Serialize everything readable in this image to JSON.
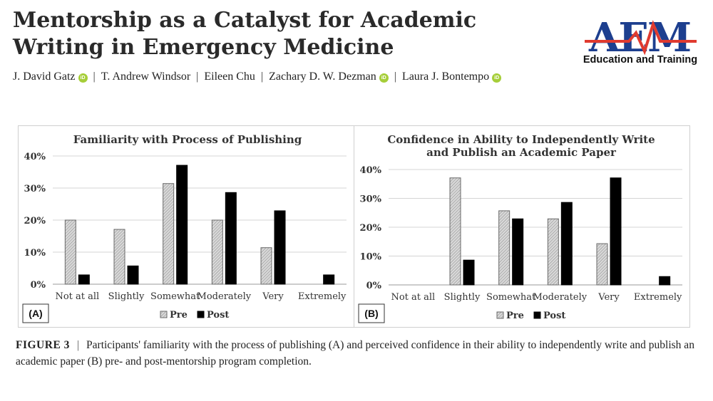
{
  "header": {
    "title": "Mentorship as a Catalyst for Academic Writing in Emergency Medicine",
    "authors": [
      "J. David Gatz",
      "T. Andrew Windsor",
      "Eileen Chu",
      "Zachary D. W. Dezman",
      "Laura J. Bontempo"
    ],
    "orcid_flags": [
      true,
      false,
      false,
      true,
      true
    ],
    "separator": "|",
    "orcid_label": "iD"
  },
  "journal": {
    "logo_text": "AEM",
    "subtitle": "Education and Training",
    "colors": {
      "blue": "#1d3f8f",
      "red": "#e03a2f"
    }
  },
  "chart_data": [
    {
      "type": "bar",
      "panel_label": "(A)",
      "title": "Familiarity with Process of Publishing",
      "categories": [
        "Not at all",
        "Slightly",
        "Somewhat",
        "Moderately",
        "Very",
        "Extremely"
      ],
      "series": [
        {
          "name": "Pre",
          "values": [
            20,
            17.1,
            31.4,
            20,
            11.4,
            0
          ]
        },
        {
          "name": "Post",
          "values": [
            2.9,
            5.7,
            37.1,
            28.6,
            22.9,
            2.9
          ]
        }
      ],
      "y_ticks": [
        "0%",
        "10%",
        "20%",
        "30%",
        "40%"
      ],
      "ylim": [
        0,
        40
      ],
      "xlabel": "",
      "ylabel": "",
      "grid": true,
      "legend": "bottom"
    },
    {
      "type": "bar",
      "panel_label": "(B)",
      "title": "Confidence in Ability to Independently Write and Publish an Academic Paper",
      "categories": [
        "Not at all",
        "Slightly",
        "Somewhat",
        "Moderately",
        "Very",
        "Extremely"
      ],
      "series": [
        {
          "name": "Pre",
          "values": [
            0,
            37.1,
            25.7,
            22.9,
            14.3,
            0
          ]
        },
        {
          "name": "Post",
          "values": [
            0,
            8.6,
            22.9,
            28.6,
            37.1,
            2.9
          ]
        }
      ],
      "y_ticks": [
        "0%",
        "10%",
        "20%",
        "30%",
        "40%"
      ],
      "ylim": [
        0,
        40
      ],
      "xlabel": "",
      "ylabel": "",
      "grid": true,
      "legend": "bottom"
    }
  ],
  "caption": {
    "label": "FIGURE 3",
    "separator": "|",
    "text": "Participants' familiarity with the process of publishing (A) and perceived confidence in their ability to independently write and publish an academic paper (B) pre- and post-mentorship program completion."
  }
}
